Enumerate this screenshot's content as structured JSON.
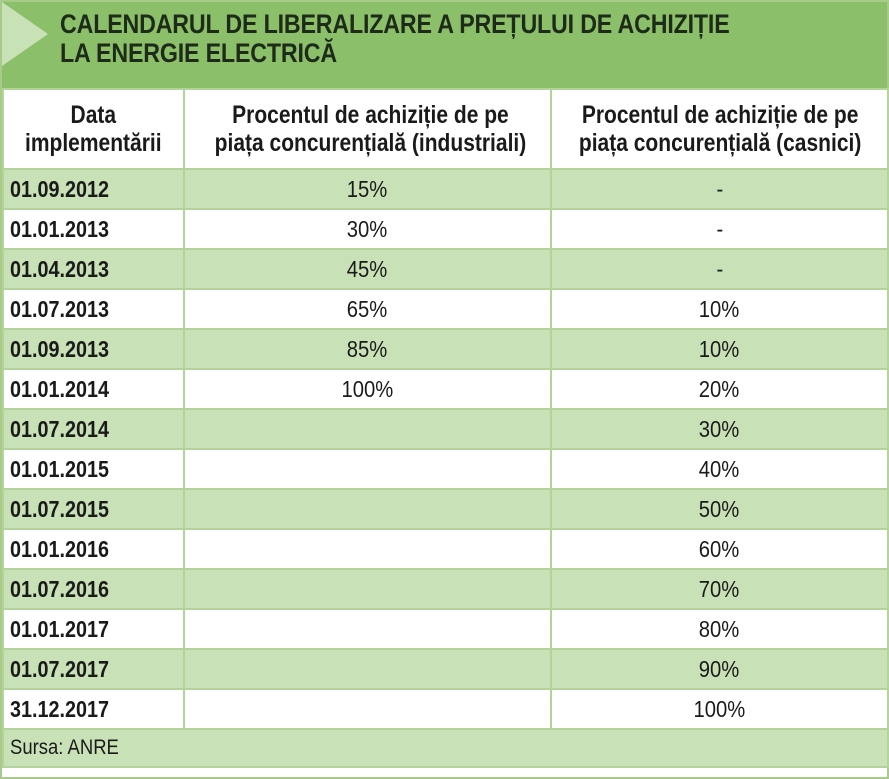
{
  "title": {
    "line1": "CALENDARUL DE LIBERALIZARE A PREȚULUI DE ACHIZIȚIE",
    "line2": "LA ENERGIE ELECTRICĂ"
  },
  "table": {
    "headers": [
      [
        "Data",
        "implementării"
      ],
      [
        "Procentul de achiziție de pe",
        "piața concurențială (industriali)"
      ],
      [
        "Procentul de achiziție de pe",
        "piața concurențială (casnici)"
      ]
    ],
    "rows": [
      {
        "date": "01.09.2012",
        "industrial": "15%",
        "casnici": "-"
      },
      {
        "date": "01.01.2013",
        "industrial": "30%",
        "casnici": "-"
      },
      {
        "date": "01.04.2013",
        "industrial": "45%",
        "casnici": "-"
      },
      {
        "date": "01.07.2013",
        "industrial": "65%",
        "casnici": "10%"
      },
      {
        "date": "01.09.2013",
        "industrial": "85%",
        "casnici": "10%"
      },
      {
        "date": "01.01.2014",
        "industrial": "100%",
        "casnici": "20%"
      },
      {
        "date": "01.07.2014",
        "industrial": "",
        "casnici": "30%"
      },
      {
        "date": "01.01.2015",
        "industrial": "",
        "casnici": "40%"
      },
      {
        "date": "01.07.2015",
        "industrial": "",
        "casnici": "50%"
      },
      {
        "date": "01.01.2016",
        "industrial": "",
        "casnici": "60%"
      },
      {
        "date": "01.07.2016",
        "industrial": "",
        "casnici": "70%"
      },
      {
        "date": "01.01.2017",
        "industrial": "",
        "casnici": "80%"
      },
      {
        "date": "01.07.2017",
        "industrial": "",
        "casnici": "90%"
      },
      {
        "date": "31.12.2017",
        "industrial": "",
        "casnici": "100%"
      }
    ]
  },
  "source": "Sursa: ANRE",
  "colors": {
    "title_bar": "#8bbf6a",
    "row_stripe": "#c9e1b6",
    "border": "#b3d39a",
    "title_arrow": "#c9e1b6"
  }
}
